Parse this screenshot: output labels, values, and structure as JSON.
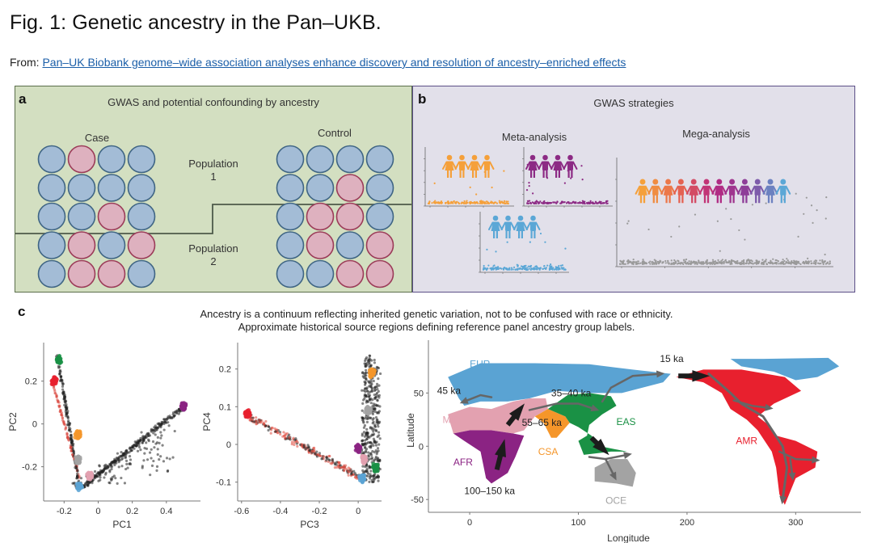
{
  "figure": {
    "title": "Fig. 1: Genetic ancestry in the Pan–UKB.",
    "from_label": "From: ",
    "from_link": "Pan–UK Biobank genome–wide association analyses enhance discovery and resolution of ancestry–enriched effects"
  },
  "panel_a": {
    "letter": "a",
    "title": "GWAS and potential confounding by ancestry",
    "case_label": "Case",
    "control_label": "Control",
    "population1": [
      "Population",
      "1"
    ],
    "population2": [
      "Population",
      "2"
    ],
    "colors": {
      "blue": "#a3bcd6",
      "blue_stroke": "#3f6584",
      "pink": "#deb1bf",
      "pink_stroke": "#9b3b58"
    },
    "case_grid": [
      [
        "b",
        "p",
        "b",
        "b"
      ],
      [
        "b",
        "b",
        "b",
        "b"
      ],
      [
        "b",
        "b",
        "p",
        "b"
      ],
      [
        "b",
        "p",
        "b",
        "p"
      ],
      [
        "b",
        "p",
        "p",
        "b"
      ]
    ],
    "control_grid": [
      [
        "b",
        "b",
        "b",
        "b"
      ],
      [
        "b",
        "b",
        "p",
        "b"
      ],
      [
        "b",
        "p",
        "p",
        "b"
      ],
      [
        "b",
        "p",
        "b",
        "p"
      ],
      [
        "b",
        "b",
        "p",
        "p"
      ]
    ]
  },
  "panel_b": {
    "letter": "b",
    "title": "GWAS strategies",
    "meta_label": "Meta-analysis",
    "mega_label": "Mega-analysis",
    "meta_colors": [
      "#f5a03a",
      "#8c2a84",
      "#5ba7d6"
    ],
    "mega_gradient": [
      "#f5a03a",
      "#e8684e",
      "#b9287f",
      "#8a3f9a",
      "#5ba7d6"
    ],
    "mega_point_color": "#9a9a9a"
  },
  "panel_c": {
    "letter": "c",
    "caption_line1": "Ancestry is a continuum reflecting inherited genetic variation, not to be confused with race or ethnicity.",
    "caption_line2": "Approximate historical source regions defining reference panel ancestry group labels.",
    "ancestry_colors": {
      "AFR": "#8b2383",
      "AMR": "#e8202e",
      "CSA": "#f5962a",
      "EAS": "#1a9145",
      "EUR": "#5aa3d3",
      "MID": "#e3a1b0",
      "OCE": "#a3a3a3"
    }
  },
  "chart_data": [
    {
      "type": "scatter",
      "title": "PC1 vs PC2",
      "xlabel": "PC1",
      "ylabel": "PC2",
      "xticks": [
        "-0.2",
        "0",
        "0.2",
        "0.4"
      ],
      "yticks": [
        "-0.2",
        "0",
        "0.2"
      ],
      "xlim": [
        -0.32,
        0.6
      ],
      "ylim": [
        -0.36,
        0.38
      ],
      "clusters": [
        {
          "group": "EAS",
          "center": [
            -0.23,
            0.3
          ]
        },
        {
          "group": "AMR",
          "center": [
            -0.26,
            0.2
          ]
        },
        {
          "group": "CSA",
          "center": [
            -0.12,
            -0.05
          ]
        },
        {
          "group": "OCE",
          "center": [
            -0.12,
            -0.17
          ]
        },
        {
          "group": "EUR",
          "center": [
            -0.11,
            -0.29
          ]
        },
        {
          "group": "MID",
          "center": [
            -0.05,
            -0.24
          ]
        },
        {
          "group": "AFR",
          "center": [
            0.5,
            0.08
          ]
        }
      ]
    },
    {
      "type": "scatter",
      "title": "PC3 vs PC4",
      "xlabel": "PC3",
      "ylabel": "PC4",
      "xticks": [
        "-0.6",
        "-0.4",
        "-0.2",
        "0"
      ],
      "yticks": [
        "-0.1",
        "0",
        "0.1",
        "0.2"
      ],
      "xlim": [
        -0.62,
        0.12
      ],
      "ylim": [
        -0.15,
        0.27
      ],
      "clusters": [
        {
          "group": "AMR",
          "center": [
            -0.57,
            0.08
          ]
        },
        {
          "group": "CSA",
          "center": [
            0.07,
            0.19
          ]
        },
        {
          "group": "OCE",
          "center": [
            0.05,
            0.09
          ]
        },
        {
          "group": "AFR",
          "center": [
            0.0,
            -0.01
          ]
        },
        {
          "group": "EAS",
          "center": [
            0.09,
            -0.06
          ]
        },
        {
          "group": "MID",
          "center": [
            0.03,
            -0.04
          ]
        },
        {
          "group": "EUR",
          "center": [
            0.02,
            -0.09
          ]
        }
      ]
    },
    {
      "type": "map",
      "xlabel": "Longitude",
      "ylabel": "Latitude",
      "xticks": [
        "0",
        "100",
        "200",
        "300"
      ],
      "yticks": [
        "-50",
        "0",
        "50"
      ],
      "xlim": [
        -38,
        360
      ],
      "ylim": [
        -62,
        92
      ],
      "region_labels": [
        {
          "text": "EUR",
          "lon": 0,
          "lat": 74
        },
        {
          "text": "MID",
          "lon": -25,
          "lat": 22
        },
        {
          "text": "AFR",
          "lon": -15,
          "lat": -18
        },
        {
          "text": "CSA",
          "lon": 63,
          "lat": -8
        },
        {
          "text": "EAS",
          "lon": 135,
          "lat": 20
        },
        {
          "text": "OCE",
          "lon": 125,
          "lat": -54
        },
        {
          "text": "AMR",
          "lon": 245,
          "lat": 2
        }
      ],
      "migration_labels": [
        {
          "text": "45 ka",
          "lon": -30,
          "lat": 49
        },
        {
          "text": "35–40 ka",
          "lon": 75,
          "lat": 47
        },
        {
          "text": "55–65 ka",
          "lon": 48,
          "lat": 19
        },
        {
          "text": "100–150 ka",
          "lon": -5,
          "lat": -45
        },
        {
          "text": "15 ka",
          "lon": 175,
          "lat": 79
        }
      ]
    }
  ]
}
